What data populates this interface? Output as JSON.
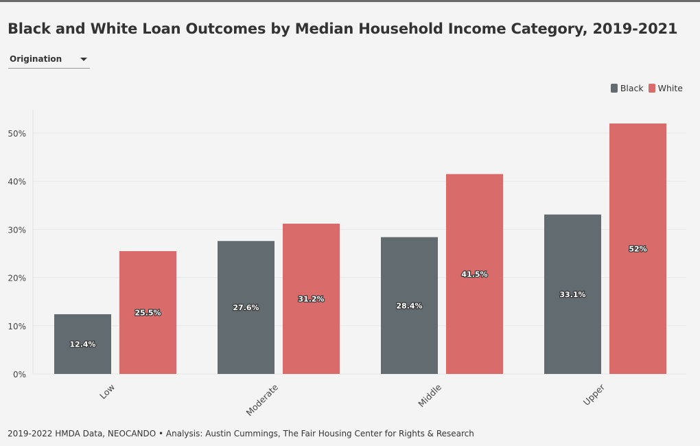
{
  "title": "Black and White Loan Outcomes by Median Household Income Category, 2019-2021",
  "dropdown": {
    "selected": "Origination"
  },
  "legend": [
    {
      "name": "Black",
      "color": "#626b70"
    },
    {
      "name": "White",
      "color": "#d96c6a"
    }
  ],
  "source": "2019-2022 HMDA Data, NEOCANDO • Analysis: Austin Cummings, The Fair Housing Center for Rights & Research",
  "chart_data": {
    "type": "bar",
    "categories": [
      "Low",
      "Moderate",
      "Middle",
      "Upper"
    ],
    "series": [
      {
        "name": "Black",
        "values": [
          12.4,
          27.6,
          28.4,
          33.1
        ],
        "labels": [
          "12.4%",
          "27.6%",
          "28.4%",
          "33.1%"
        ],
        "color": "#626b70"
      },
      {
        "name": "White",
        "values": [
          25.5,
          31.2,
          41.5,
          52
        ],
        "labels": [
          "25.5%",
          "31.2%",
          "41.5%",
          "52%"
        ],
        "color": "#d96c6a"
      }
    ],
    "yticks": [
      "0%",
      "10%",
      "20%",
      "30%",
      "40%",
      "50%"
    ],
    "ylim": [
      0,
      55
    ],
    "grid": true,
    "legend_position": "top-right"
  }
}
